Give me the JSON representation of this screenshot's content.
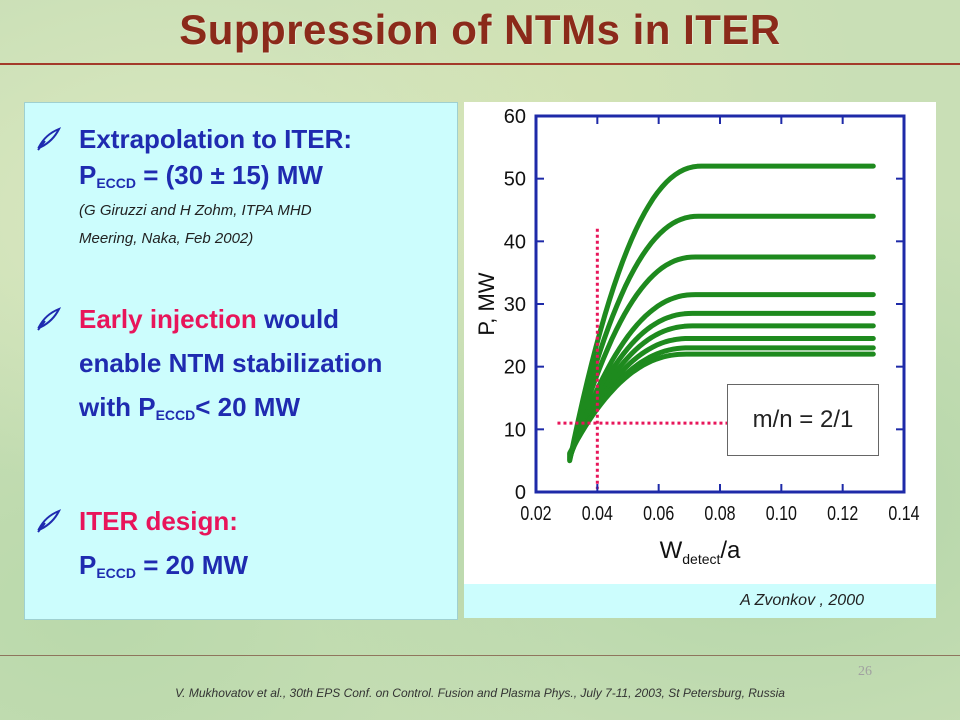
{
  "title": "Suppression of NTMs in ITER",
  "bullets": {
    "b1": {
      "line1": "Extrapolation to ITER:",
      "p_main": "P",
      "p_sub": "ECCD",
      "p_rest": " = (30 ± 15) MW",
      "cite_line1": "(G Giruzzi and H Zohm, ITPA MHD",
      "cite_line2": "Meering, Naka, Feb 2002)"
    },
    "b2": {
      "accent": "Early injection",
      "rest1": " would",
      "line2": "enable NTM stabilization",
      "with": "with P",
      "p_sub": "ECCD",
      "p_rest": "< 20 MW"
    },
    "b3": {
      "line1": "ITER design:",
      "p_main": "P",
      "p_sub": "ECCD",
      "p_rest": " = 20 MW"
    }
  },
  "chart_data": {
    "type": "line",
    "xlabel_main": "W",
    "xlabel_sub": "detect",
    "xlabel_tail": "/a",
    "ylabel": "P, MW",
    "xlim": [
      0.02,
      0.14
    ],
    "ylim": [
      0,
      60
    ],
    "xticks": [
      "0.02",
      "0.04",
      "0.06",
      "0.08",
      "0.10",
      "0.12",
      "0.14"
    ],
    "yticks": [
      "0",
      "10",
      "20",
      "30",
      "40",
      "50",
      "60"
    ],
    "series": [
      {
        "plateau": 52,
        "x_plateau": 0.074
      },
      {
        "plateau": 44,
        "x_plateau": 0.073
      },
      {
        "plateau": 37.5,
        "x_plateau": 0.072
      },
      {
        "plateau": 31.5,
        "x_plateau": 0.072
      },
      {
        "plateau": 28.5,
        "x_plateau": 0.071
      },
      {
        "plateau": 26.5,
        "x_plateau": 0.071
      },
      {
        "plateau": 24.5,
        "x_plateau": 0.07
      },
      {
        "plateau": 23,
        "x_plateau": 0.07
      },
      {
        "plateau": 22,
        "x_plateau": 0.069
      }
    ],
    "x_start": 0.031,
    "y_start": 5,
    "x_end": 0.13,
    "marker_x": 0.04,
    "marker_y": 11,
    "annotation": "m/n = 2/1",
    "line_color": "#1e8a1e",
    "marker_color": "#e8155a",
    "frame_color": "#1e2aa8"
  },
  "caption": "A Zvonkov , 2000",
  "footer": "V. Mukhovatov et al., 30th EPS Conf. on Control. Fusion and Plasma Phys., July 7-11, 2003, St Petersburg, Russia",
  "page_number": "26",
  "colors": {
    "title": "#8b2a1a",
    "text_blue": "#1f2bb0",
    "accent_pink": "#e8155a",
    "panel_bg": "#ccfdfd"
  },
  "icons": {
    "bullet": "quill-pen-icon"
  }
}
